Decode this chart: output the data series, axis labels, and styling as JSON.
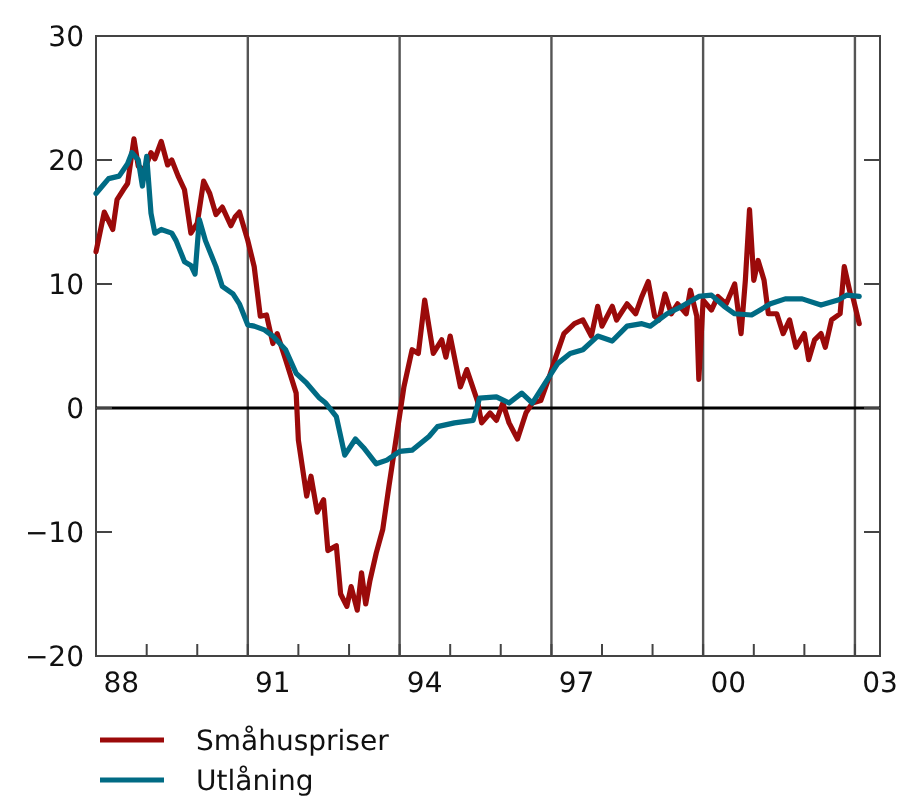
{
  "chart_data": {
    "type": "line",
    "xlim": [
      "1988-01-01",
      "2003-07-01"
    ],
    "ylim": [
      -20,
      30
    ],
    "xticks": [
      {
        "value": "1989-01-01",
        "label": null
      },
      {
        "value": "1990-01-01",
        "label": null
      },
      {
        "value": "1991-01-01",
        "label": null
      },
      {
        "value": "1992-01-01",
        "label": null
      },
      {
        "value": "1993-01-01",
        "label": null
      },
      {
        "value": "1994-01-01",
        "label": null
      },
      {
        "value": "1995-01-01",
        "label": null
      },
      {
        "value": "1996-01-01",
        "label": null
      },
      {
        "value": "1997-01-01",
        "label": null
      },
      {
        "value": "1998-01-01",
        "label": null
      },
      {
        "value": "1999-01-01",
        "label": null
      },
      {
        "value": "2000-01-01",
        "label": null
      },
      {
        "value": "2001-01-01",
        "label": null
      },
      {
        "value": "2002-01-01",
        "label": null
      },
      {
        "value": "2003-01-01",
        "label": null
      },
      {
        "value": "1988-07-01",
        "label": "88"
      },
      {
        "value": "1991-07-01",
        "label": "91"
      },
      {
        "value": "1994-07-01",
        "label": "94"
      },
      {
        "value": "1997-07-01",
        "label": "97"
      },
      {
        "value": "2000-07-01",
        "label": "00"
      },
      {
        "value": "2003-07-01",
        "label": "03"
      }
    ],
    "yticks": [
      {
        "value": -20,
        "label": "−20"
      },
      {
        "value": -10,
        "label": "−10"
      },
      0,
      10,
      20,
      30
    ],
    "ref_lines": [
      {
        "axis": "x",
        "value": "1991-01-01",
        "color": "#555555"
      },
      {
        "axis": "x",
        "value": "1994-01-01",
        "color": "#555555"
      },
      {
        "axis": "x",
        "value": "1997-01-01",
        "color": "#555555"
      },
      {
        "axis": "x",
        "value": "2000-01-01",
        "color": "#555555"
      },
      {
        "axis": "x",
        "value": "2003-01-01",
        "color": "#555555"
      },
      {
        "axis": "y",
        "value": 0,
        "color": "#000000"
      }
    ],
    "legend": "bottom",
    "marker": "none",
    "series": [
      {
        "name": "Småhuspriser",
        "color": "#9b0a0a",
        "x": [
          "1988-01-01",
          "1988-03-01",
          "1988-05-01",
          "1988-06-01",
          "1988-07-16",
          "1988-08-16",
          "1988-10-01",
          "1988-11-01",
          "1988-12-16",
          "1989-02-01",
          "1989-03-01",
          "1989-04-16",
          "1989-06-01",
          "1989-07-01",
          "1989-08-16",
          "1989-10-01",
          "1989-11-16",
          "1990-01-01",
          "1990-02-16",
          "1990-04-01",
          "1990-05-16",
          "1990-07-01",
          "1990-09-01",
          "1990-10-01",
          "1990-11-01",
          "1991-01-01",
          "1991-02-16",
          "1991-04-01",
          "1991-05-16",
          "1991-07-01",
          "1991-08-01",
          "1991-10-01",
          "1991-12-16",
          "1992-01-01",
          "1992-03-01",
          "1992-04-01",
          "1992-05-16",
          "1992-07-01",
          "1992-08-01",
          "1992-10-01",
          "1992-11-01",
          "1992-12-16",
          "1993-01-16",
          "1993-03-01",
          "1993-04-01",
          "1993-05-01",
          "1993-06-01",
          "1993-07-16",
          "1993-09-01",
          "1993-10-16",
          "1993-12-01",
          "1994-02-01",
          "1994-04-01",
          "1994-05-16",
          "1994-07-01",
          "1994-09-01",
          "1994-11-01",
          "1994-12-01",
          "1995-01-01",
          "1995-03-16",
          "1995-05-01",
          "1995-07-16",
          "1995-08-16",
          "1995-10-16",
          "1995-12-01",
          "1996-01-16",
          "1996-03-01",
          "1996-05-01",
          "1996-07-01",
          "1996-08-16",
          "1996-10-16",
          "1996-12-16",
          "1997-02-01",
          "1997-04-01",
          "1997-06-16",
          "1997-08-16",
          "1997-10-16",
          "1997-12-01",
          "1998-01-01",
          "1998-03-16",
          "1998-04-16",
          "1998-07-01",
          "1998-09-01",
          "1998-10-16",
          "1998-12-01",
          "1999-01-16",
          "1999-02-16",
          "1999-04-01",
          "1999-05-16",
          "1999-07-01",
          "1999-09-01",
          "1999-10-01",
          "1999-11-16",
          "1999-12-01",
          "2000-01-01",
          "2000-03-01",
          "2000-04-16",
          "2000-06-16",
          "2000-08-16",
          "2000-10-01",
          "2000-11-01",
          "2000-12-01",
          "2001-01-01",
          "2001-02-01",
          "2001-03-16",
          "2001-04-16",
          "2001-06-16",
          "2001-08-01",
          "2001-09-16",
          "2001-11-01",
          "2002-01-01",
          "2002-02-01",
          "2002-03-16",
          "2002-05-01",
          "2002-06-01",
          "2002-07-16",
          "2002-09-16",
          "2002-10-16",
          "2002-12-01",
          "2002-12-16",
          "2003-02-01"
        ],
        "values": [
          12.6,
          15.8,
          14.4,
          16.8,
          17.6,
          18.1,
          21.7,
          19.5,
          19.2,
          20.6,
          20.1,
          21.5,
          19.6,
          20,
          18.7,
          17.6,
          14.1,
          14.9,
          18.3,
          17.3,
          15.6,
          16.2,
          14.7,
          15.4,
          15.8,
          13.5,
          11.4,
          7.4,
          7.5,
          5.2,
          6.0,
          3.9,
          1.2,
          -2.6,
          -7.1,
          -5.5,
          -8.4,
          -7.4,
          -11.5,
          -11.1,
          -15,
          -16,
          -14.4,
          -16.3,
          -13.3,
          -15.8,
          -13.9,
          -11.7,
          -9.8,
          -6.3,
          -2.9,
          1.7,
          4.7,
          4.4,
          8.7,
          4.4,
          5.5,
          4.1,
          5.8,
          1.7,
          3.1,
          0.6,
          -1.2,
          -0.4,
          -1,
          0.4,
          -1.2,
          -2.5,
          -0.4,
          0.4,
          0.6,
          2.5,
          4.1,
          6.0,
          6.8,
          7.1,
          5.8,
          8.2,
          6.6,
          8.2,
          7.1,
          8.4,
          7.6,
          9.0,
          10.2,
          7.4,
          7.1,
          9.2,
          7.6,
          8.4,
          7.6,
          9.5,
          7.4,
          2.3,
          8.7,
          7.9,
          9.0,
          8.4,
          10.0,
          6.0,
          10.3,
          16.0,
          10.3,
          11.9,
          10.3,
          7.6,
          7.6,
          6.0,
          7.1,
          4.9,
          6.0,
          3.9,
          5.5,
          6.0,
          4.9,
          7.1,
          7.6,
          11.4,
          9.1,
          9.0,
          6.8
        ]
      },
      {
        "name": "Utlåning",
        "color": "#006b84",
        "x": [
          "1988-01-01",
          "1988-02-16",
          "1988-04-01",
          "1988-06-16",
          "1988-08-16",
          "1988-09-16",
          "1988-11-01",
          "1988-12-01",
          "1989-01-01",
          "1989-02-01",
          "1989-03-01",
          "1989-04-16",
          "1989-07-01",
          "1989-08-01",
          "1989-10-01",
          "1989-11-16",
          "1989-12-16",
          "1990-01-16",
          "1990-03-01",
          "1990-05-16",
          "1990-07-01",
          "1990-09-16",
          "1990-11-01",
          "1991-01-01",
          "1991-02-16",
          "1991-05-01",
          "1991-07-01",
          "1991-10-01",
          "1991-12-16",
          "1992-03-01",
          "1992-06-01",
          "1992-07-16",
          "1992-10-01",
          "1992-12-01",
          "1993-02-16",
          "1993-04-16",
          "1993-07-16",
          "1993-10-01",
          "1994-01-01",
          "1994-04-01",
          "1994-08-01",
          "1994-10-01",
          "1995-02-01",
          "1995-06-16",
          "1995-08-01",
          "1995-12-01",
          "1996-03-01",
          "1996-06-01",
          "1996-08-16",
          "1996-11-16",
          "1997-02-16",
          "1997-05-16",
          "1997-08-16",
          "1997-12-01",
          "1998-03-16",
          "1998-07-01",
          "1998-10-16",
          "1998-12-16",
          "1999-04-16",
          "1999-08-01",
          "1999-12-01",
          "2000-03-01",
          "2000-06-01",
          "2000-08-16",
          "2000-12-16",
          "2001-05-01",
          "2001-08-16",
          "2001-12-16",
          "2002-05-01",
          "2002-09-01",
          "2002-11-01",
          "2003-02-01"
        ],
        "values": [
          17.3,
          17.9,
          18.5,
          18.7,
          19.7,
          20.6,
          20,
          17.9,
          20.3,
          15.7,
          14.1,
          14.4,
          14.1,
          13.5,
          11.8,
          11.5,
          10.8,
          15.2,
          13.5,
          11.4,
          9.8,
          9.2,
          8.4,
          6.7,
          6.6,
          6.3,
          5.8,
          4.7,
          2.8,
          2.0,
          0.8,
          0.4,
          -0.7,
          -3.8,
          -2.5,
          -3.2,
          -4.5,
          -4.2,
          -3.5,
          -3.4,
          -2.3,
          -1.5,
          -1.2,
          -1,
          0.8,
          0.9,
          0.4,
          1.2,
          0.4,
          2.0,
          3.6,
          4.4,
          4.7,
          5.8,
          5.4,
          6.6,
          6.8,
          6.6,
          7.6,
          8.2,
          9.0,
          9.1,
          8.2,
          7.6,
          7.5,
          8.4,
          8.8,
          8.8,
          8.3,
          8.7,
          9.1,
          9.0
        ]
      }
    ]
  }
}
